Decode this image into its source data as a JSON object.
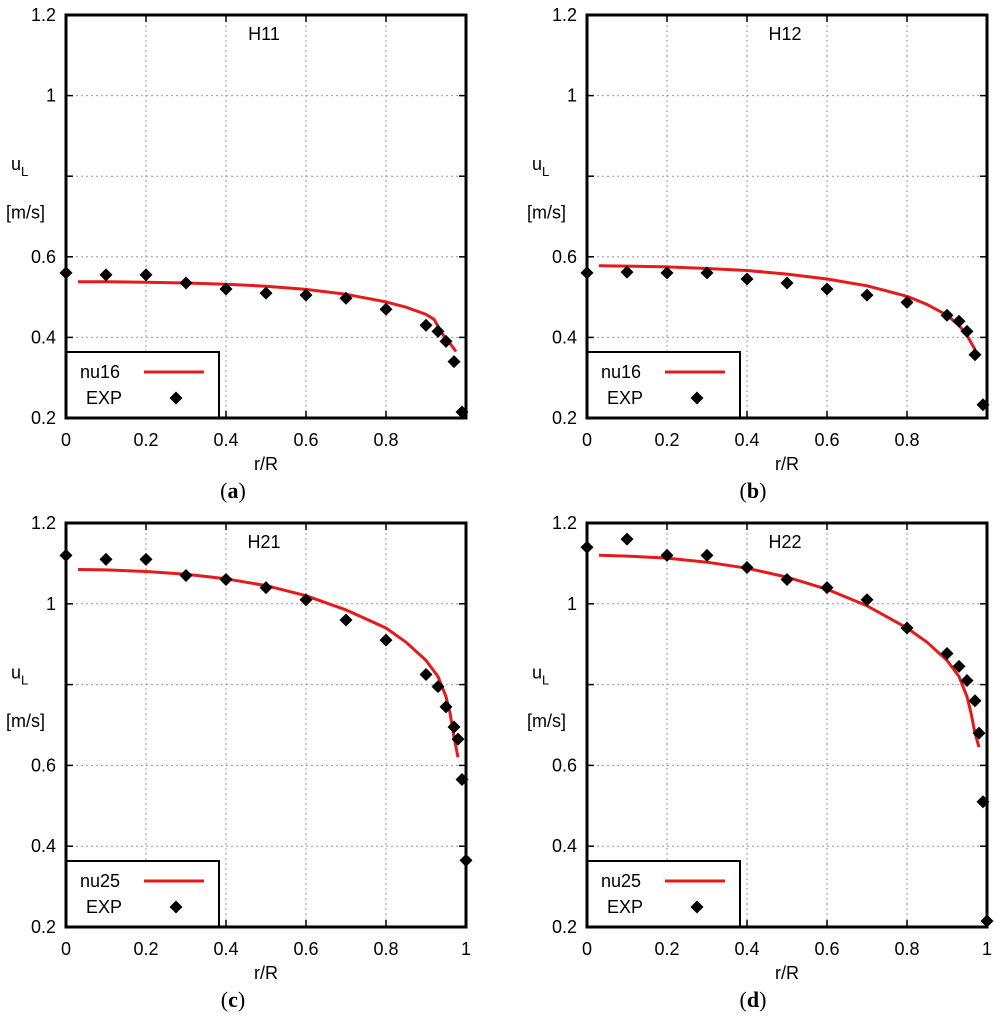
{
  "chart_data": [
    {
      "type": "line",
      "panel_label": "a",
      "title": "H11",
      "xlabel": "r/R",
      "ylabel_main": "u",
      "ylabel_sub": "L",
      "ylabel_unit": "[m/s]",
      "xlim": [
        0,
        1
      ],
      "ylim": [
        0.2,
        1.2
      ],
      "xticks": [
        "0",
        "0.2",
        "0.4",
        "0.6",
        "0.8"
      ],
      "yticks": [
        "0.2",
        "0.4",
        "0.6",
        "1",
        "1.2"
      ],
      "legend_position": "bottom-left",
      "grid": true,
      "series": [
        {
          "name": "nu16",
          "color": "#e41a1c",
          "style": "line",
          "x": [
            0.03,
            0.1,
            0.2,
            0.3,
            0.4,
            0.5,
            0.6,
            0.7,
            0.8,
            0.85,
            0.9,
            0.92,
            0.94,
            0.96,
            0.975
          ],
          "y": [
            0.538,
            0.538,
            0.537,
            0.535,
            0.532,
            0.527,
            0.519,
            0.507,
            0.488,
            0.475,
            0.457,
            0.445,
            0.41,
            0.385,
            0.365
          ]
        },
        {
          "name": "EXP",
          "color": "#000000",
          "style": "diamond",
          "x": [
            0.0,
            0.1,
            0.2,
            0.3,
            0.4,
            0.5,
            0.6,
            0.7,
            0.8,
            0.9,
            0.93,
            0.95,
            0.97,
            0.99
          ],
          "y": [
            0.56,
            0.555,
            0.555,
            0.535,
            0.52,
            0.51,
            0.505,
            0.497,
            0.47,
            0.43,
            0.415,
            0.39,
            0.34,
            0.215
          ]
        }
      ]
    },
    {
      "type": "line",
      "panel_label": "b",
      "title": "H12",
      "xlabel": "r/R",
      "ylabel_main": "u",
      "ylabel_sub": "L",
      "ylabel_unit": "[m/s]",
      "xlim": [
        0,
        1
      ],
      "ylim": [
        0.2,
        1.2
      ],
      "xticks": [
        "0",
        "0.2",
        "0.4",
        "0.6",
        "0.8"
      ],
      "yticks": [
        "0.2",
        "0.4",
        "0.6",
        "1",
        "1.2"
      ],
      "legend_position": "bottom-left",
      "grid": true,
      "series": [
        {
          "name": "nu16",
          "color": "#e41a1c",
          "style": "line",
          "x": [
            0.03,
            0.1,
            0.2,
            0.3,
            0.4,
            0.5,
            0.6,
            0.7,
            0.8,
            0.85,
            0.9,
            0.93,
            0.95,
            0.97
          ],
          "y": [
            0.578,
            0.577,
            0.575,
            0.571,
            0.566,
            0.557,
            0.545,
            0.528,
            0.502,
            0.482,
            0.455,
            0.43,
            0.405,
            0.37
          ]
        },
        {
          "name": "EXP",
          "color": "#000000",
          "style": "diamond",
          "x": [
            0.0,
            0.1,
            0.2,
            0.3,
            0.4,
            0.5,
            0.6,
            0.7,
            0.8,
            0.9,
            0.93,
            0.95,
            0.97,
            0.99
          ],
          "y": [
            0.56,
            0.562,
            0.56,
            0.56,
            0.545,
            0.535,
            0.52,
            0.505,
            0.487,
            0.455,
            0.44,
            0.415,
            0.357,
            0.233
          ]
        }
      ]
    },
    {
      "type": "line",
      "panel_label": "c",
      "title": "H21",
      "xlabel": "r/R",
      "ylabel_main": "u",
      "ylabel_sub": "L",
      "ylabel_unit": "[m/s]",
      "xlim": [
        0,
        1
      ],
      "ylim": [
        0.2,
        1.2
      ],
      "xticks": [
        "0",
        "0.2",
        "0.4",
        "0.6",
        "0.8",
        "1"
      ],
      "yticks": [
        "0.2",
        "0.4",
        "0.6",
        "1",
        "1.2"
      ],
      "legend_position": "bottom-left",
      "grid": true,
      "series": [
        {
          "name": "nu25",
          "color": "#e41a1c",
          "style": "line",
          "x": [
            0.03,
            0.1,
            0.2,
            0.3,
            0.4,
            0.5,
            0.6,
            0.7,
            0.8,
            0.85,
            0.9,
            0.93,
            0.95,
            0.96,
            0.97,
            0.98
          ],
          "y": [
            1.085,
            1.084,
            1.08,
            1.073,
            1.062,
            1.045,
            1.02,
            0.985,
            0.94,
            0.905,
            0.86,
            0.82,
            0.77,
            0.73,
            0.67,
            0.62
          ]
        },
        {
          "name": "EXP",
          "color": "#000000",
          "style": "diamond",
          "x": [
            0.0,
            0.1,
            0.2,
            0.3,
            0.4,
            0.5,
            0.6,
            0.7,
            0.8,
            0.9,
            0.93,
            0.95,
            0.97,
            0.98,
            0.99,
            1.0
          ],
          "y": [
            1.12,
            1.11,
            1.11,
            1.07,
            1.06,
            1.04,
            1.01,
            0.96,
            0.91,
            0.825,
            0.795,
            0.745,
            0.695,
            0.665,
            0.565,
            0.365
          ]
        }
      ]
    },
    {
      "type": "line",
      "panel_label": "d",
      "title": "H22",
      "xlabel": "r/R",
      "ylabel_main": "u",
      "ylabel_sub": "L",
      "ylabel_unit": "[m/s]",
      "xlim": [
        0,
        1
      ],
      "ylim": [
        0.2,
        1.2
      ],
      "xticks": [
        "0",
        "0.2",
        "0.4",
        "0.6",
        "0.8",
        "1"
      ],
      "yticks": [
        "0.2",
        "0.4",
        "0.6",
        "1",
        "1.2"
      ],
      "legend_position": "bottom-left",
      "grid": true,
      "series": [
        {
          "name": "nu25",
          "color": "#e41a1c",
          "style": "line",
          "x": [
            0.03,
            0.1,
            0.2,
            0.3,
            0.4,
            0.5,
            0.6,
            0.7,
            0.8,
            0.85,
            0.9,
            0.93,
            0.95,
            0.96,
            0.97,
            0.98
          ],
          "y": [
            1.12,
            1.118,
            1.113,
            1.103,
            1.088,
            1.066,
            1.036,
            0.995,
            0.94,
            0.905,
            0.86,
            0.82,
            0.77,
            0.73,
            0.68,
            0.645
          ]
        },
        {
          "name": "EXP",
          "color": "#000000",
          "style": "diamond",
          "x": [
            0.0,
            0.1,
            0.2,
            0.3,
            0.4,
            0.5,
            0.6,
            0.7,
            0.8,
            0.9,
            0.93,
            0.95,
            0.97,
            0.98,
            0.99,
            1.0
          ],
          "y": [
            1.14,
            1.16,
            1.12,
            1.12,
            1.09,
            1.06,
            1.04,
            1.01,
            0.94,
            0.877,
            0.845,
            0.81,
            0.76,
            0.68,
            0.51,
            0.215
          ]
        }
      ]
    }
  ]
}
